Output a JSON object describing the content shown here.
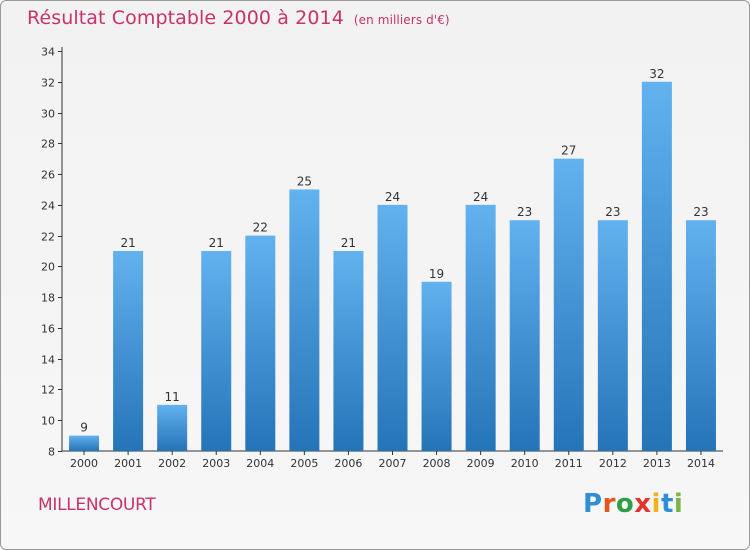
{
  "header": {
    "title": "Résultat Comptable 2000 à 2014",
    "subtitle": "(en milliers d'€)"
  },
  "commune": "MILLENCOURT",
  "logo": {
    "letters": [
      "P",
      "r",
      "o",
      "x",
      "i",
      "t",
      "i"
    ]
  },
  "colors": {
    "bar_light": "#62b2ef",
    "bar_dark": "#2474b8",
    "title": "#c7326a"
  },
  "chart_data": {
    "type": "bar",
    "title": "Résultat Comptable 2000 à 2014",
    "ylabel": "en milliers d'€",
    "xlabel": "",
    "categories": [
      "2000",
      "2001",
      "2002",
      "2003",
      "2004",
      "2005",
      "2006",
      "2007",
      "2008",
      "2009",
      "2010",
      "2011",
      "2012",
      "2013",
      "2014"
    ],
    "values": [
      9,
      21,
      11,
      21,
      22,
      25,
      21,
      24,
      19,
      24,
      23,
      27,
      23,
      32,
      23
    ],
    "ylim": [
      8,
      34
    ],
    "yticks": [
      8,
      10,
      12,
      14,
      16,
      18,
      20,
      22,
      24,
      26,
      28,
      30,
      32,
      34
    ],
    "grid": false,
    "legend": "none"
  }
}
